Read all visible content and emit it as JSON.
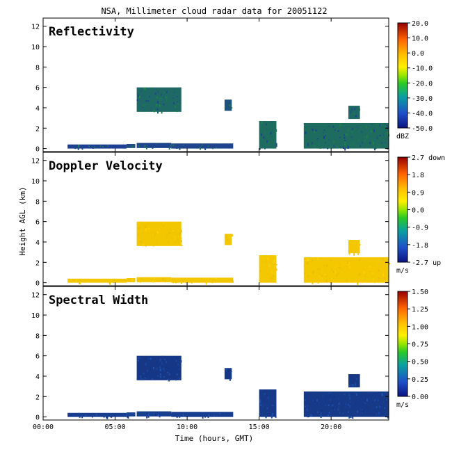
{
  "title": "NSA, Millimeter cloud radar data for 20051122",
  "xlabel": "Time (hours, GMT)",
  "ylabel": "Height AGL (km)",
  "chart_data": {
    "type": "heatmap",
    "x_ticks": [
      {
        "value": 0,
        "label": "00:00"
      },
      {
        "value": 5,
        "label": "05:00"
      },
      {
        "value": 10,
        "label": "10:00"
      },
      {
        "value": 15,
        "label": "15:00"
      },
      {
        "value": 20,
        "label": "20:00"
      }
    ],
    "xlim": [
      0,
      24
    ],
    "ylim": [
      -0.3,
      12.8
    ],
    "y_ticks": [
      0,
      2,
      4,
      6,
      8,
      10,
      12
    ],
    "panels": [
      {
        "title": "Reflectivity",
        "unit": "dBZ",
        "colorbar_ticks": [
          "20.0",
          "10.0",
          "0.0",
          "-10.0",
          "-20.0",
          "-30.0",
          "-40.0",
          "-50.0"
        ],
        "colors": {
          "low": "#1e3c96",
          "high": "#1e8c3c"
        },
        "echoes": [
          {
            "t0": 1.7,
            "t1": 5.8,
            "h0": 0.0,
            "h1": 0.4,
            "level": 0.05
          },
          {
            "t0": 5.8,
            "t1": 6.4,
            "h0": 0.05,
            "h1": 0.45,
            "level": 0.2
          },
          {
            "t0": 6.5,
            "t1": 8.9,
            "h0": 0.05,
            "h1": 0.55,
            "level": 0.1
          },
          {
            "t0": 8.9,
            "t1": 13.2,
            "h0": 0.0,
            "h1": 0.5,
            "level": 0.1
          },
          {
            "t0": 6.5,
            "t1": 9.6,
            "h0": 3.6,
            "h1": 6.0,
            "level": 0.55
          },
          {
            "t0": 12.6,
            "t1": 13.1,
            "h0": 3.7,
            "h1": 4.8,
            "level": 0.3
          },
          {
            "t0": 15.0,
            "t1": 16.2,
            "h0": 0.0,
            "h1": 2.7,
            "level": 0.6
          },
          {
            "t0": 18.1,
            "t1": 24.0,
            "h0": 0.0,
            "h1": 2.5,
            "level": 0.6
          },
          {
            "t0": 21.2,
            "t1": 22.0,
            "h0": 2.9,
            "h1": 4.2,
            "level": 0.55
          }
        ]
      },
      {
        "title": "Doppler Velocity",
        "unit": "m/s",
        "colorbar_ticks": [
          "2.7 down",
          "1.8",
          "0.9",
          "0.0",
          "-0.9",
          "-1.8",
          "-2.7 up"
        ],
        "colors": {
          "low": "#e6bc00",
          "high": "#ffd200"
        },
        "echoes": [
          {
            "t0": 1.7,
            "t1": 5.8,
            "h0": 0.0,
            "h1": 0.4,
            "level": 0.5
          },
          {
            "t0": 5.8,
            "t1": 6.4,
            "h0": 0.05,
            "h1": 0.45,
            "level": 0.5
          },
          {
            "t0": 6.5,
            "t1": 8.9,
            "h0": 0.05,
            "h1": 0.55,
            "level": 0.5
          },
          {
            "t0": 8.9,
            "t1": 13.2,
            "h0": 0.0,
            "h1": 0.5,
            "level": 0.5
          },
          {
            "t0": 6.5,
            "t1": 9.6,
            "h0": 3.6,
            "h1": 6.0,
            "level": 0.5
          },
          {
            "t0": 12.6,
            "t1": 13.1,
            "h0": 3.7,
            "h1": 4.8,
            "level": 0.5
          },
          {
            "t0": 15.0,
            "t1": 16.2,
            "h0": 0.0,
            "h1": 2.7,
            "level": 0.55
          },
          {
            "t0": 18.1,
            "t1": 24.0,
            "h0": 0.0,
            "h1": 2.5,
            "level": 0.55
          },
          {
            "t0": 21.2,
            "t1": 22.0,
            "h0": 2.9,
            "h1": 4.2,
            "level": 0.55
          }
        ]
      },
      {
        "title": "Spectral Width",
        "unit": "m/s",
        "colorbar_ticks": [
          "1.50",
          "1.25",
          "1.00",
          "0.75",
          "0.50",
          "0.25",
          "0.00"
        ],
        "colors": {
          "low": "#14327d",
          "high": "#1e55b4"
        },
        "echoes": [
          {
            "t0": 1.7,
            "t1": 5.8,
            "h0": 0.0,
            "h1": 0.4,
            "level": 0.3
          },
          {
            "t0": 5.8,
            "t1": 6.4,
            "h0": 0.05,
            "h1": 0.45,
            "level": 0.45
          },
          {
            "t0": 6.5,
            "t1": 8.9,
            "h0": 0.05,
            "h1": 0.55,
            "level": 0.35
          },
          {
            "t0": 8.9,
            "t1": 13.2,
            "h0": 0.0,
            "h1": 0.5,
            "level": 0.3
          },
          {
            "t0": 6.5,
            "t1": 9.6,
            "h0": 3.6,
            "h1": 6.0,
            "level": 0.15
          },
          {
            "t0": 12.6,
            "t1": 13.1,
            "h0": 3.7,
            "h1": 4.8,
            "level": 0.15
          },
          {
            "t0": 15.0,
            "t1": 16.2,
            "h0": 0.0,
            "h1": 2.7,
            "level": 0.2
          },
          {
            "t0": 18.1,
            "t1": 24.0,
            "h0": 0.0,
            "h1": 2.5,
            "level": 0.2
          },
          {
            "t0": 21.2,
            "t1": 22.0,
            "h0": 2.9,
            "h1": 4.2,
            "level": 0.15
          }
        ]
      }
    ]
  }
}
